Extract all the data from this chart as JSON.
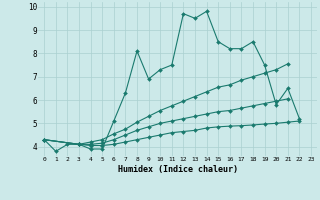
{
  "xlabel": "Humidex (Indice chaleur)",
  "ylabel": "",
  "xlim": [
    -0.5,
    23.5
  ],
  "ylim": [
    3.6,
    10.2
  ],
  "xticks": [
    0,
    1,
    2,
    3,
    4,
    5,
    6,
    7,
    8,
    9,
    10,
    11,
    12,
    13,
    14,
    15,
    16,
    17,
    18,
    19,
    20,
    21,
    22,
    23
  ],
  "yticks": [
    4,
    5,
    6,
    7,
    8,
    9,
    10
  ],
  "bg_color": "#cce9e9",
  "line_color": "#1a7a6e",
  "grid_color": "#aad0d0",
  "lines": [
    {
      "x": [
        0,
        1,
        2,
        3,
        4,
        5,
        6,
        7,
        8,
        9,
        10,
        11,
        12,
        13,
        14,
        15,
        16,
        17,
        18,
        19,
        20,
        21,
        22
      ],
      "y": [
        4.3,
        3.8,
        4.1,
        4.1,
        3.9,
        3.9,
        5.1,
        6.3,
        8.1,
        6.9,
        7.3,
        7.5,
        9.7,
        9.5,
        9.8,
        8.5,
        8.2,
        8.2,
        8.5,
        7.5,
        5.8,
        6.5,
        5.2
      ]
    },
    {
      "x": [
        0,
        3,
        4,
        5,
        6,
        7,
        8,
        9,
        10,
        11,
        12,
        13,
        14,
        15,
        16,
        17,
        18,
        19,
        20,
        21
      ],
      "y": [
        4.3,
        4.1,
        4.2,
        4.3,
        4.55,
        4.75,
        5.05,
        5.3,
        5.55,
        5.75,
        5.95,
        6.15,
        6.35,
        6.55,
        6.65,
        6.85,
        7.0,
        7.15,
        7.3,
        7.55
      ]
    },
    {
      "x": [
        0,
        3,
        4,
        5,
        6,
        7,
        8,
        9,
        10,
        11,
        12,
        13,
        14,
        15,
        16,
        17,
        18,
        19,
        20,
        21
      ],
      "y": [
        4.3,
        4.1,
        4.1,
        4.15,
        4.3,
        4.5,
        4.7,
        4.85,
        5.0,
        5.1,
        5.2,
        5.3,
        5.4,
        5.5,
        5.55,
        5.65,
        5.75,
        5.85,
        5.95,
        6.05
      ]
    },
    {
      "x": [
        0,
        3,
        4,
        5,
        6,
        7,
        8,
        9,
        10,
        11,
        12,
        13,
        14,
        15,
        16,
        17,
        18,
        19,
        20,
        21,
        22
      ],
      "y": [
        4.3,
        4.1,
        4.05,
        4.05,
        4.1,
        4.2,
        4.3,
        4.4,
        4.5,
        4.6,
        4.65,
        4.7,
        4.8,
        4.85,
        4.88,
        4.9,
        4.93,
        4.97,
        5.0,
        5.05,
        5.1
      ]
    }
  ]
}
